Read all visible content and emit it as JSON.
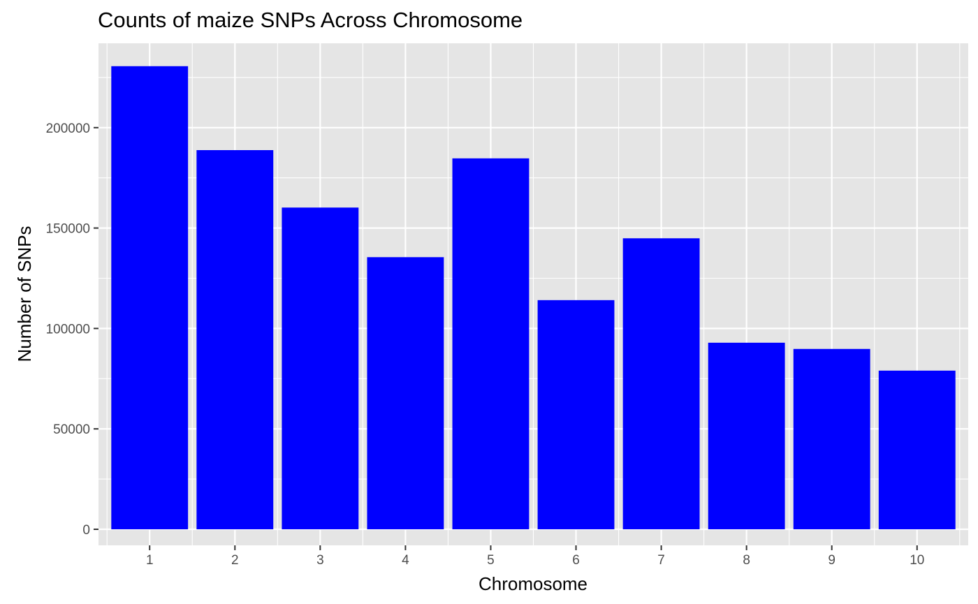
{
  "chart_data": {
    "type": "bar",
    "title": "Counts of maize SNPs Across Chromosome",
    "xlabel": "Chromosome",
    "ylabel": "Number of SNPs",
    "categories": [
      "1",
      "2",
      "3",
      "4",
      "5",
      "6",
      "7",
      "8",
      "9",
      "10"
    ],
    "values": [
      230600,
      188800,
      160200,
      135500,
      184700,
      114100,
      144900,
      92900,
      89800,
      79000
    ],
    "ylim": [
      -8000,
      242000
    ],
    "yticks": [
      0,
      50000,
      100000,
      150000,
      200000
    ],
    "ytick_labels": [
      "0",
      "50000",
      "100000",
      "150000",
      "200000"
    ],
    "grid": true,
    "legend": "none",
    "colors": {
      "bar_fill": "#0000ff",
      "panel_background": "#e5e5e5",
      "grid_line": "#ffffff",
      "tick_text": "#4d4d4d",
      "axis_title_text": "#000000"
    }
  }
}
